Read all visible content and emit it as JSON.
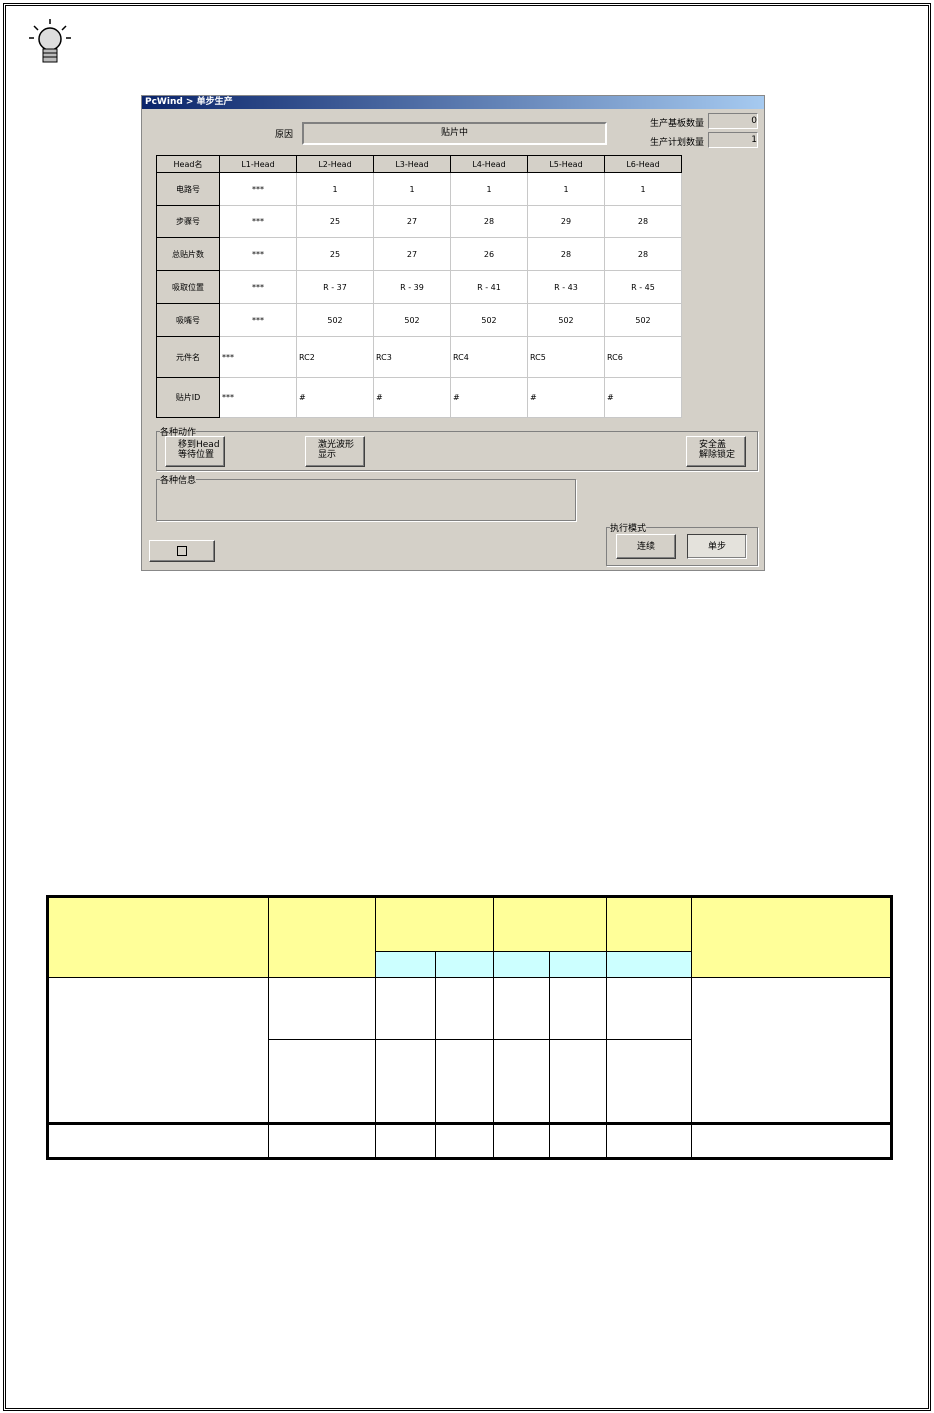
{
  "window": {
    "title": "PcWind > 单步生产",
    "reason_label": "原因",
    "reason_value": "贴片中",
    "board_count_label": "生产基板数量",
    "board_count_value": "0",
    "plan_count_label": "生产计划数量",
    "plan_count_value": "1"
  },
  "grid": {
    "headers": [
      "Head名",
      "L1-Head",
      "L2-Head",
      "L3-Head",
      "L4-Head",
      "L5-Head",
      "L6-Head"
    ],
    "rows": [
      {
        "label": "电路号",
        "cells": [
          "***",
          "1",
          "1",
          "1",
          "1",
          "1"
        ]
      },
      {
        "label": "步骤号",
        "cells": [
          "***",
          "25",
          "27",
          "28",
          "29",
          "28"
        ]
      },
      {
        "label": "总贴片数",
        "cells": [
          "***",
          "25",
          "27",
          "26",
          "28",
          "28"
        ]
      },
      {
        "label": "吸取位置",
        "cells": [
          "***",
          "R - 37",
          "R - 39",
          "R - 41",
          "R - 43",
          "R - 45"
        ]
      },
      {
        "label": "吸嘴号",
        "cells": [
          "***",
          "502",
          "502",
          "502",
          "502",
          "502"
        ]
      },
      {
        "label": "元件名",
        "cells": [
          "***",
          "RC2",
          "RC3",
          "RC4",
          "RC5",
          "RC6"
        ]
      },
      {
        "label": "贴片ID",
        "cells": [
          "***",
          "#",
          "#",
          "#",
          "#",
          "#"
        ]
      }
    ]
  },
  "actions": {
    "label": "各种动作",
    "move_head": "移到Head\n等待位置",
    "laser": "激光波形\n显示",
    "safety": "安全盖\n解除锁定"
  },
  "info": {
    "label": "各种信息"
  },
  "exec_mode": {
    "label": "执行模式",
    "continuous": "连续",
    "step": "单步"
  },
  "colors": {
    "header_yellow": "#ffff99",
    "header_cyan": "#ccffff"
  }
}
